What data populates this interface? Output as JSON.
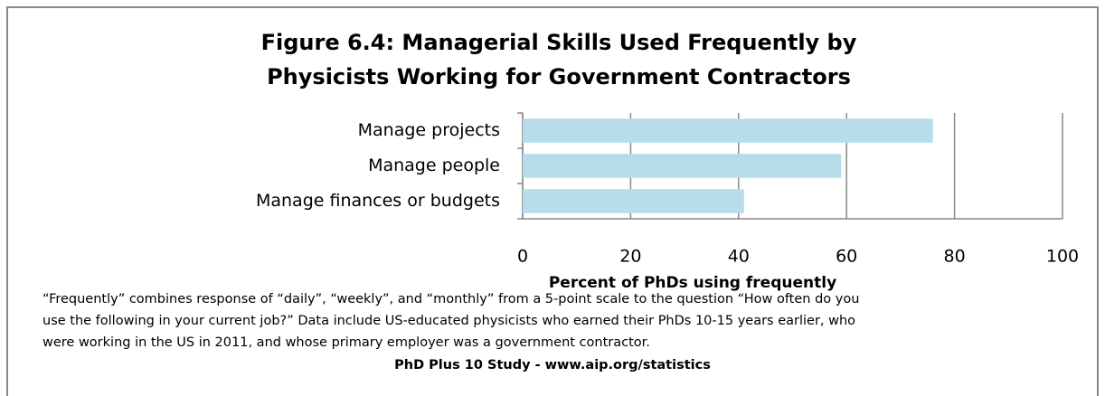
{
  "chart_data": {
    "type": "bar",
    "orientation": "horizontal",
    "title": [
      "Figure 6.4: Managerial Skills Used Frequently by",
      "Physicists Working for Government Contractors"
    ],
    "categories": [
      "Manage projects",
      "Manage people",
      "Manage finances or budgets"
    ],
    "values": [
      76,
      59,
      41
    ],
    "color": "#b7dde8",
    "xlim": [
      0,
      100
    ],
    "xticks": [
      0,
      20,
      40,
      60,
      80,
      100
    ],
    "grid": true,
    "x_label": "Percent of PhDs using frequently",
    "note": [
      "“Frequently” combines response of “daily”, “weekly”, and “monthly” from a 5-point scale to the question “How often do you",
      "use the following in your current job?”  Data include US-educated physicists  who earned their PhDs 10-15 years earlier, who",
      "were working in the US in 2011, and whose primary employer was a government contractor."
    ],
    "source": "PhD Plus 10 Study - www.aip.org/statistics"
  }
}
